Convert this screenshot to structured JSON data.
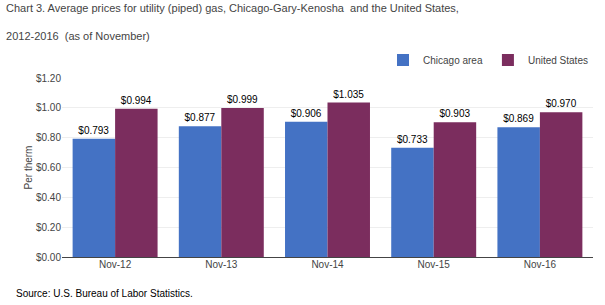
{
  "chart_data": {
    "type": "bar",
    "title": "Chart 3. Average prices for utility (piped) gas, Chicago-Gary-Kenosha  and the United States,",
    "subtitle": "2012-2016  (as of November)",
    "ylabel": "Per therm",
    "annotations": [
      "Source: U.S. Bureau of Labor Statistics."
    ],
    "categories": [
      "Nov-12",
      "Nov-13",
      "Nov-14",
      "Nov-15",
      "Nov-16"
    ],
    "series": [
      {
        "name": "Chicago area",
        "color": "#4472C4",
        "values": [
          0.793,
          0.877,
          0.906,
          0.733,
          0.869
        ],
        "value_labels": [
          "$0.793",
          "$0.877",
          "$0.906",
          "$0.733",
          "$0.869"
        ]
      },
      {
        "name": "United States",
        "color": "#7B2D5E",
        "values": [
          0.994,
          0.999,
          1.035,
          0.903,
          0.97
        ],
        "value_labels": [
          "$0.994",
          "$0.999",
          "$1.035",
          "$0.903",
          "$0.970"
        ]
      }
    ],
    "ylim": [
      0,
      1.2
    ],
    "yticks": [
      {
        "value": 0.0,
        "label": "$0.00"
      },
      {
        "value": 0.2,
        "label": "$0.20"
      },
      {
        "value": 0.4,
        "label": "$0.40"
      },
      {
        "value": 0.6,
        "label": "$0.60"
      },
      {
        "value": 0.8,
        "label": "$0.80"
      },
      {
        "value": 1.0,
        "label": "$1.00"
      },
      {
        "value": 1.2,
        "label": "$1.20"
      }
    ],
    "grid": true,
    "legend": "upper right",
    "data_labels": true
  }
}
